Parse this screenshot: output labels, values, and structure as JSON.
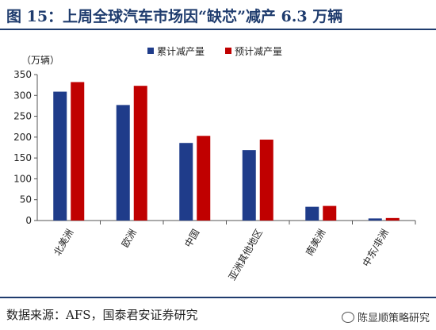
{
  "figure": {
    "title": "图 15：上周全球汽车市场因“缺芯”减产 6.3 万辆",
    "source": "数据来源：AFS，国泰君安证券研究",
    "watermark": "陈显顺策略研究",
    "watermark_icon": "wechat-icon"
  },
  "colors": {
    "series_1": "#1f3c8a",
    "series_2": "#c00000",
    "frame": "#1f3c6e"
  },
  "chart_data": {
    "type": "bar",
    "title": "",
    "ylabel": "（万辆）",
    "xlabel": "",
    "categories": [
      "北美洲",
      "欧洲",
      "中国",
      "亚洲其他地区",
      "南美洲",
      "中东/非洲"
    ],
    "series": [
      {
        "name": "累计减产量",
        "values": [
          309,
          277,
          186,
          169,
          33,
          5
        ]
      },
      {
        "name": "预计减产量",
        "values": [
          332,
          323,
          203,
          194,
          35,
          6
        ]
      }
    ],
    "ylim": [
      0,
      350
    ],
    "yticks": [
      0,
      50,
      100,
      150,
      200,
      250,
      300,
      350
    ],
    "grid": false,
    "legend_position": "top-center"
  }
}
